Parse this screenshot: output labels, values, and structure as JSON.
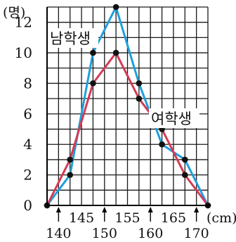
{
  "chart_data": {
    "type": "line",
    "y_unit": "(명)",
    "x_unit": "(cm)",
    "x_ticks_lower": [
      "140",
      "150",
      "160",
      "170"
    ],
    "x_ticks_upper": [
      "145",
      "155",
      "165"
    ],
    "y_ticks": [
      "0",
      "2",
      "4",
      "6",
      "8",
      "10",
      "12"
    ],
    "ylim": [
      0,
      13
    ],
    "xlim": [
      137.5,
      172.5
    ],
    "grid": true,
    "series": [
      {
        "name": "남학생",
        "color": "#1e9fdc",
        "points": [
          [
            137.5,
            0
          ],
          [
            142.5,
            2
          ],
          [
            147.5,
            10
          ],
          [
            152.5,
            13
          ],
          [
            157.5,
            8
          ],
          [
            162.5,
            4
          ],
          [
            167.5,
            3
          ],
          [
            172.5,
            0
          ]
        ]
      },
      {
        "name": "여학생",
        "color": "#d43a55",
        "points": [
          [
            137.5,
            0
          ],
          [
            142.5,
            3
          ],
          [
            147.5,
            8
          ],
          [
            152.5,
            10
          ],
          [
            157.5,
            7
          ],
          [
            162.5,
            5
          ],
          [
            167.5,
            2
          ],
          [
            172.5,
            0
          ]
        ]
      }
    ]
  }
}
